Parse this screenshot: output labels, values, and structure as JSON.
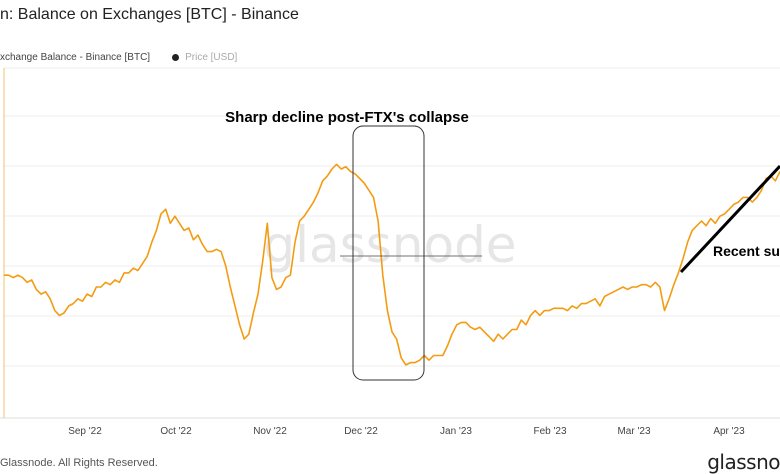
{
  "header": {
    "title": "n: Balance on Exchanges [BTC] - Binance"
  },
  "legend": {
    "series_label": "xchange Balance - Binance [BTC]",
    "price_label": "Price [USD]"
  },
  "footer": {
    "copyright": "Glassnode. All Rights Reserved.",
    "brand": "glassno"
  },
  "watermark": "glassnode",
  "colors": {
    "line": "#f39c12",
    "annotation": "#000000",
    "grid": "#ececec"
  },
  "chart_data": {
    "type": "line",
    "x_ticks": [
      "Sep '22",
      "Oct '22",
      "Nov '22",
      "Dec '22",
      "Jan '23",
      "Feb '23",
      "Mar '23",
      "Apr '23"
    ],
    "annotations": [
      "Sharp decline post-FTX's collapse",
      "Recent su"
    ],
    "grid": true,
    "series": [
      {
        "values_relative": [
          0.41,
          0.41,
          0.4,
          0.41,
          0.4,
          0.38,
          0.39,
          0.35,
          0.33,
          0.34,
          0.31,
          0.26,
          0.24,
          0.25,
          0.28,
          0.29,
          0.31,
          0.3,
          0.33,
          0.32,
          0.36,
          0.36,
          0.38,
          0.37,
          0.39,
          0.38,
          0.42,
          0.42,
          0.44,
          0.43,
          0.46,
          0.49,
          0.55,
          0.6,
          0.67,
          0.69,
          0.63,
          0.66,
          0.63,
          0.6,
          0.61,
          0.56,
          0.58,
          0.54,
          0.51,
          0.51,
          0.52,
          0.51,
          0.45,
          0.36,
          0.28,
          0.2,
          0.14,
          0.16,
          0.25,
          0.33,
          0.47,
          0.63,
          0.4,
          0.35,
          0.36,
          0.4,
          0.41,
          0.55,
          0.64,
          0.66,
          0.69,
          0.72,
          0.76,
          0.81,
          0.83,
          0.86,
          0.88,
          0.86,
          0.87,
          0.85,
          0.84,
          0.82,
          0.8,
          0.77,
          0.74,
          0.64,
          0.41,
          0.26,
          0.17,
          0.14,
          0.06,
          0.03,
          0.04,
          0.04,
          0.05,
          0.07,
          0.05,
          0.07,
          0.07,
          0.07,
          0.11,
          0.16,
          0.2,
          0.21,
          0.21,
          0.19,
          0.18,
          0.19,
          0.17,
          0.15,
          0.13,
          0.16,
          0.14,
          0.16,
          0.18,
          0.18,
          0.22,
          0.2,
          0.24,
          0.26,
          0.24,
          0.26,
          0.26,
          0.27,
          0.27,
          0.27,
          0.26,
          0.28,
          0.27,
          0.29,
          0.29,
          0.3,
          0.31,
          0.28,
          0.32,
          0.33,
          0.34,
          0.35,
          0.36,
          0.35,
          0.36,
          0.36,
          0.37,
          0.37,
          0.36,
          0.38,
          0.36,
          0.26,
          0.31,
          0.37,
          0.42,
          0.48,
          0.55,
          0.6,
          0.62,
          0.64,
          0.62,
          0.65,
          0.63,
          0.66,
          0.67,
          0.69,
          0.71,
          0.72,
          0.74,
          0.74,
          0.72,
          0.74,
          0.77,
          0.82,
          0.83,
          0.81,
          0.85
        ]
      }
    ]
  }
}
